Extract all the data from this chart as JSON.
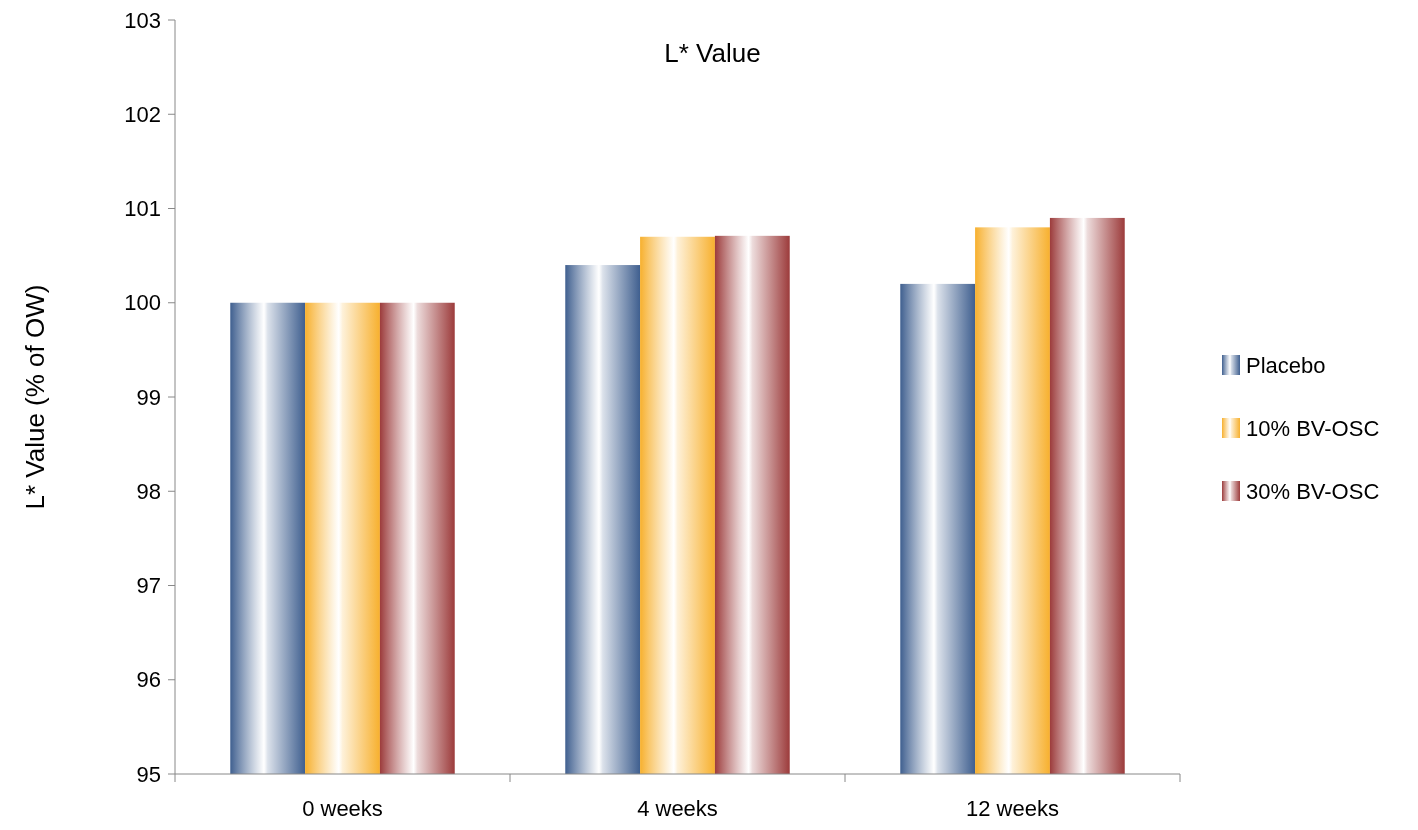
{
  "chart_data": {
    "type": "bar",
    "title": "L* Value",
    "ylabel": "L* Value (% of OW)",
    "categories": [
      "0 weeks",
      "4 weeks",
      "12 weeks"
    ],
    "series": [
      {
        "name": "Placebo",
        "color": "#3f5f8f",
        "values": [
          100,
          100.4,
          100.2
        ]
      },
      {
        "name": "10% BV-OSC",
        "color": "#f7b02e",
        "values": [
          100,
          100.7,
          100.8
        ]
      },
      {
        "name": "30% BV-OSC",
        "color": "#9c3b3b",
        "values": [
          100,
          100.71,
          100.9
        ]
      }
    ],
    "ylim": [
      95,
      103
    ],
    "yticks": [
      95,
      96,
      97,
      98,
      99,
      100,
      101,
      102,
      103
    ],
    "grid": false,
    "legend": "right"
  }
}
